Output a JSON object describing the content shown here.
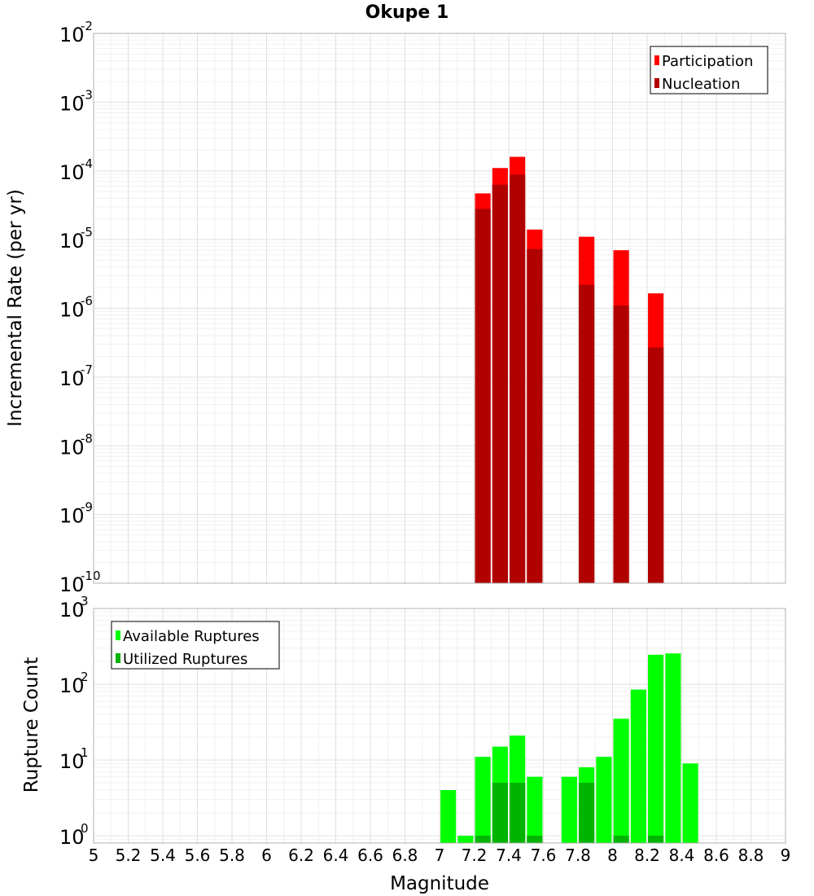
{
  "chart_data": [
    {
      "type": "bar",
      "title": "Okupe 1",
      "xlabel": "Magnitude",
      "ylabel": "Incremental Rate (per yr)",
      "yscale": "log",
      "xlim": [
        5,
        9
      ],
      "ylim": [
        1e-10,
        0.01
      ],
      "grid": true,
      "legend_position": "top-right",
      "bar_width": 0.09,
      "series": [
        {
          "name": "Participation",
          "color": "#ff0000",
          "points": [
            {
              "x": 7.25,
              "y": 4.7e-05
            },
            {
              "x": 7.35,
              "y": 0.00011
            },
            {
              "x": 7.45,
              "y": 0.00016
            },
            {
              "x": 7.55,
              "y": 1.4e-05
            },
            {
              "x": 7.85,
              "y": 1.1e-05
            },
            {
              "x": 8.05,
              "y": 7e-06
            },
            {
              "x": 8.25,
              "y": 1.65e-06
            }
          ]
        },
        {
          "name": "Nucleation",
          "color": "#b00000",
          "points": [
            {
              "x": 7.25,
              "y": 2.8e-05
            },
            {
              "x": 7.35,
              "y": 6.3e-05
            },
            {
              "x": 7.45,
              "y": 8.8e-05
            },
            {
              "x": 7.55,
              "y": 7.3e-06
            },
            {
              "x": 7.85,
              "y": 2.2e-06
            },
            {
              "x": 8.05,
              "y": 1.1e-06
            },
            {
              "x": 8.25,
              "y": 2.7e-07
            }
          ]
        }
      ]
    },
    {
      "type": "bar",
      "xlabel": "Magnitude",
      "ylabel": "Rupture Count",
      "yscale": "log",
      "xlim": [
        5,
        9
      ],
      "ylim": [
        0.8,
        1000
      ],
      "grid": true,
      "legend_position": "top-left",
      "bar_width": 0.09,
      "x_ticks": [
        "5",
        "5.2",
        "5.4",
        "5.6",
        "5.8",
        "6",
        "6.2",
        "6.4",
        "6.6",
        "6.8",
        "7",
        "7.2",
        "7.4",
        "7.6",
        "7.8",
        "8",
        "8.2",
        "8.4",
        "8.6",
        "8.8",
        "9"
      ],
      "series": [
        {
          "name": "Available Ruptures",
          "color": "#00ff00",
          "points": [
            {
              "x": 7.05,
              "y": 4
            },
            {
              "x": 7.15,
              "y": 1
            },
            {
              "x": 7.25,
              "y": 11
            },
            {
              "x": 7.35,
              "y": 15
            },
            {
              "x": 7.45,
              "y": 21
            },
            {
              "x": 7.55,
              "y": 6
            },
            {
              "x": 7.75,
              "y": 6
            },
            {
              "x": 7.85,
              "y": 8
            },
            {
              "x": 7.95,
              "y": 11
            },
            {
              "x": 8.05,
              "y": 35
            },
            {
              "x": 8.15,
              "y": 85
            },
            {
              "x": 8.25,
              "y": 245
            },
            {
              "x": 8.35,
              "y": 255
            },
            {
              "x": 8.45,
              "y": 9
            }
          ]
        },
        {
          "name": "Utilized Ruptures",
          "color": "#00b400",
          "points": [
            {
              "x": 7.25,
              "y": 1
            },
            {
              "x": 7.35,
              "y": 5
            },
            {
              "x": 7.45,
              "y": 5
            },
            {
              "x": 7.55,
              "y": 1
            },
            {
              "x": 7.85,
              "y": 5
            },
            {
              "x": 8.05,
              "y": 1
            },
            {
              "x": 8.25,
              "y": 1
            }
          ]
        }
      ]
    }
  ]
}
